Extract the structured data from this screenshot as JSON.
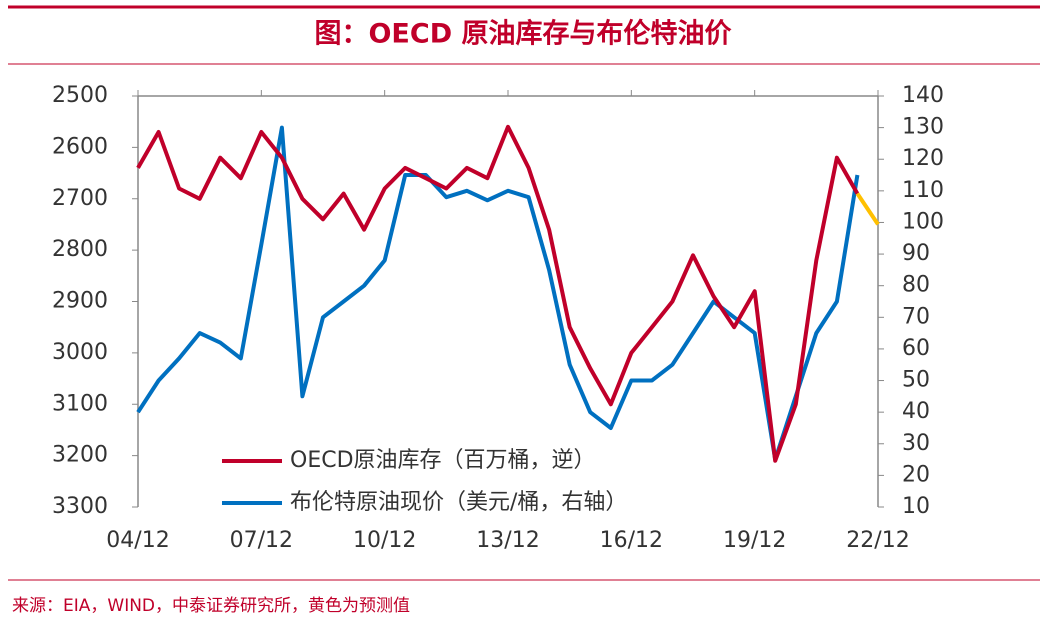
{
  "chart_data": {
    "type": "line",
    "title": "图：OECD 原油库存与布伦特油价",
    "source": "来源：EIA，WIND，中泰证券研究所，黄色为预测值",
    "categories": [
      "04/12",
      null,
      null,
      null,
      null,
      null,
      "07/12",
      null,
      null,
      null,
      null,
      null,
      "10/12",
      null,
      null,
      null,
      null,
      null,
      "13/12",
      null,
      null,
      null,
      null,
      null,
      "16/12",
      null,
      null,
      null,
      null,
      null,
      "19/12",
      null,
      null,
      null,
      null,
      null,
      "22/12"
    ],
    "ylim": [
      2500,
      3300
    ],
    "y_inverted": true,
    "yticks": [
      2500,
      2600,
      2700,
      2800,
      2900,
      3000,
      3100,
      3200,
      3300
    ],
    "y2lim": [
      10,
      140
    ],
    "y2ticks": [
      10,
      20,
      30,
      40,
      50,
      60,
      70,
      80,
      90,
      100,
      110,
      120,
      130,
      140
    ],
    "series": [
      {
        "name": "OECD原油库存（百万桶，逆）",
        "color": "#c0002a",
        "values": [
          2640,
          2570,
          2680,
          2700,
          2620,
          2660,
          2570,
          2620,
          2700,
          2740,
          2690,
          2760,
          2680,
          2640,
          2660,
          2680,
          2640,
          2660,
          2560,
          2640,
          2760,
          2950,
          3030,
          3100,
          3000,
          2950,
          2900,
          2810,
          2890,
          2950,
          2880,
          3210,
          3100,
          2820,
          2620,
          2690,
          null
        ]
      },
      {
        "name": "布伦特原油现价（美元/桶，右轴）",
        "color": "#0070c0",
        "axis": "y2",
        "values": [
          40,
          50,
          57,
          65,
          62,
          57,
          93,
          130,
          45,
          70,
          75,
          80,
          88,
          115,
          115,
          108,
          110,
          107,
          110,
          108,
          85,
          55,
          40,
          35,
          50,
          50,
          55,
          65,
          75,
          70,
          65,
          25,
          45,
          65,
          75,
          115,
          null
        ]
      },
      {
        "color": "#ffc000",
        "values": [
          null,
          null,
          null,
          null,
          null,
          null,
          null,
          null,
          null,
          null,
          null,
          null,
          null,
          null,
          null,
          null,
          null,
          null,
          null,
          null,
          null,
          null,
          null,
          null,
          null,
          null,
          null,
          null,
          null,
          null,
          null,
          null,
          null,
          null,
          null,
          2690,
          2750
        ]
      }
    ]
  }
}
